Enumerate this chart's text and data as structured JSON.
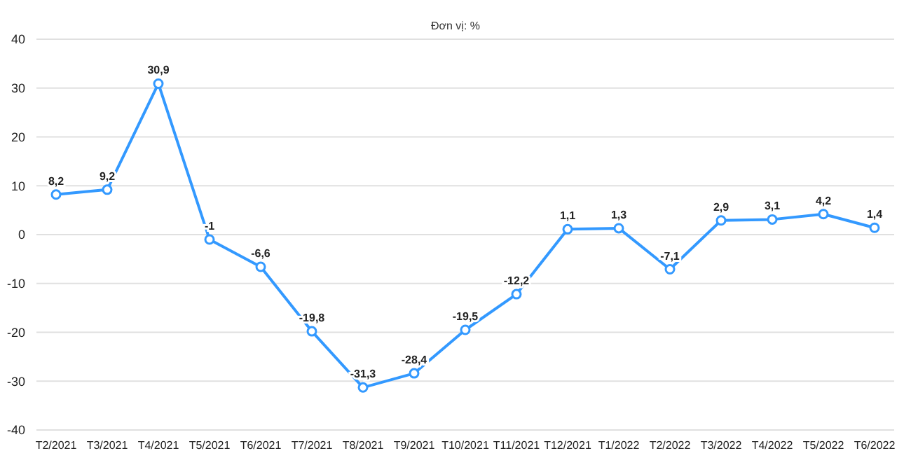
{
  "chart_data": {
    "type": "line",
    "subtitle": "Đơn vị: %",
    "categories": [
      "T2/2021",
      "T3/2021",
      "T4/2021",
      "T5/2021",
      "T6/2021",
      "T7/2021",
      "T8/2021",
      "T9/2021",
      "T10/2021",
      "T11/2021",
      "T12/2021",
      "T1/2022",
      "T2/2022",
      "T3/2022",
      "T4/2022",
      "T5/2022",
      "T6/2022"
    ],
    "series": [
      {
        "color": "#3399ff",
        "values": [
          8.2,
          9.2,
          30.9,
          -1,
          -6.6,
          -19.8,
          -31.3,
          -28.4,
          -19.5,
          -12.2,
          1.1,
          1.3,
          -7.1,
          2.9,
          3.1,
          4.2,
          1.4
        ],
        "value_labels": [
          "8,2",
          "9,2",
          "30,9",
          "-1",
          "-6,6",
          "-19,8",
          "-31,3",
          "-28,4",
          "-19,5",
          "-12,2",
          "1,1",
          "1,3",
          "-7,1",
          "2,9",
          "3,1",
          "4,2",
          "1,4"
        ]
      }
    ],
    "ylim": [
      -40,
      40
    ],
    "yticks": [
      -40,
      -30,
      -20,
      -10,
      0,
      10,
      20,
      30,
      40
    ],
    "grid": "y",
    "marker": "circle",
    "line_style": "solid"
  }
}
